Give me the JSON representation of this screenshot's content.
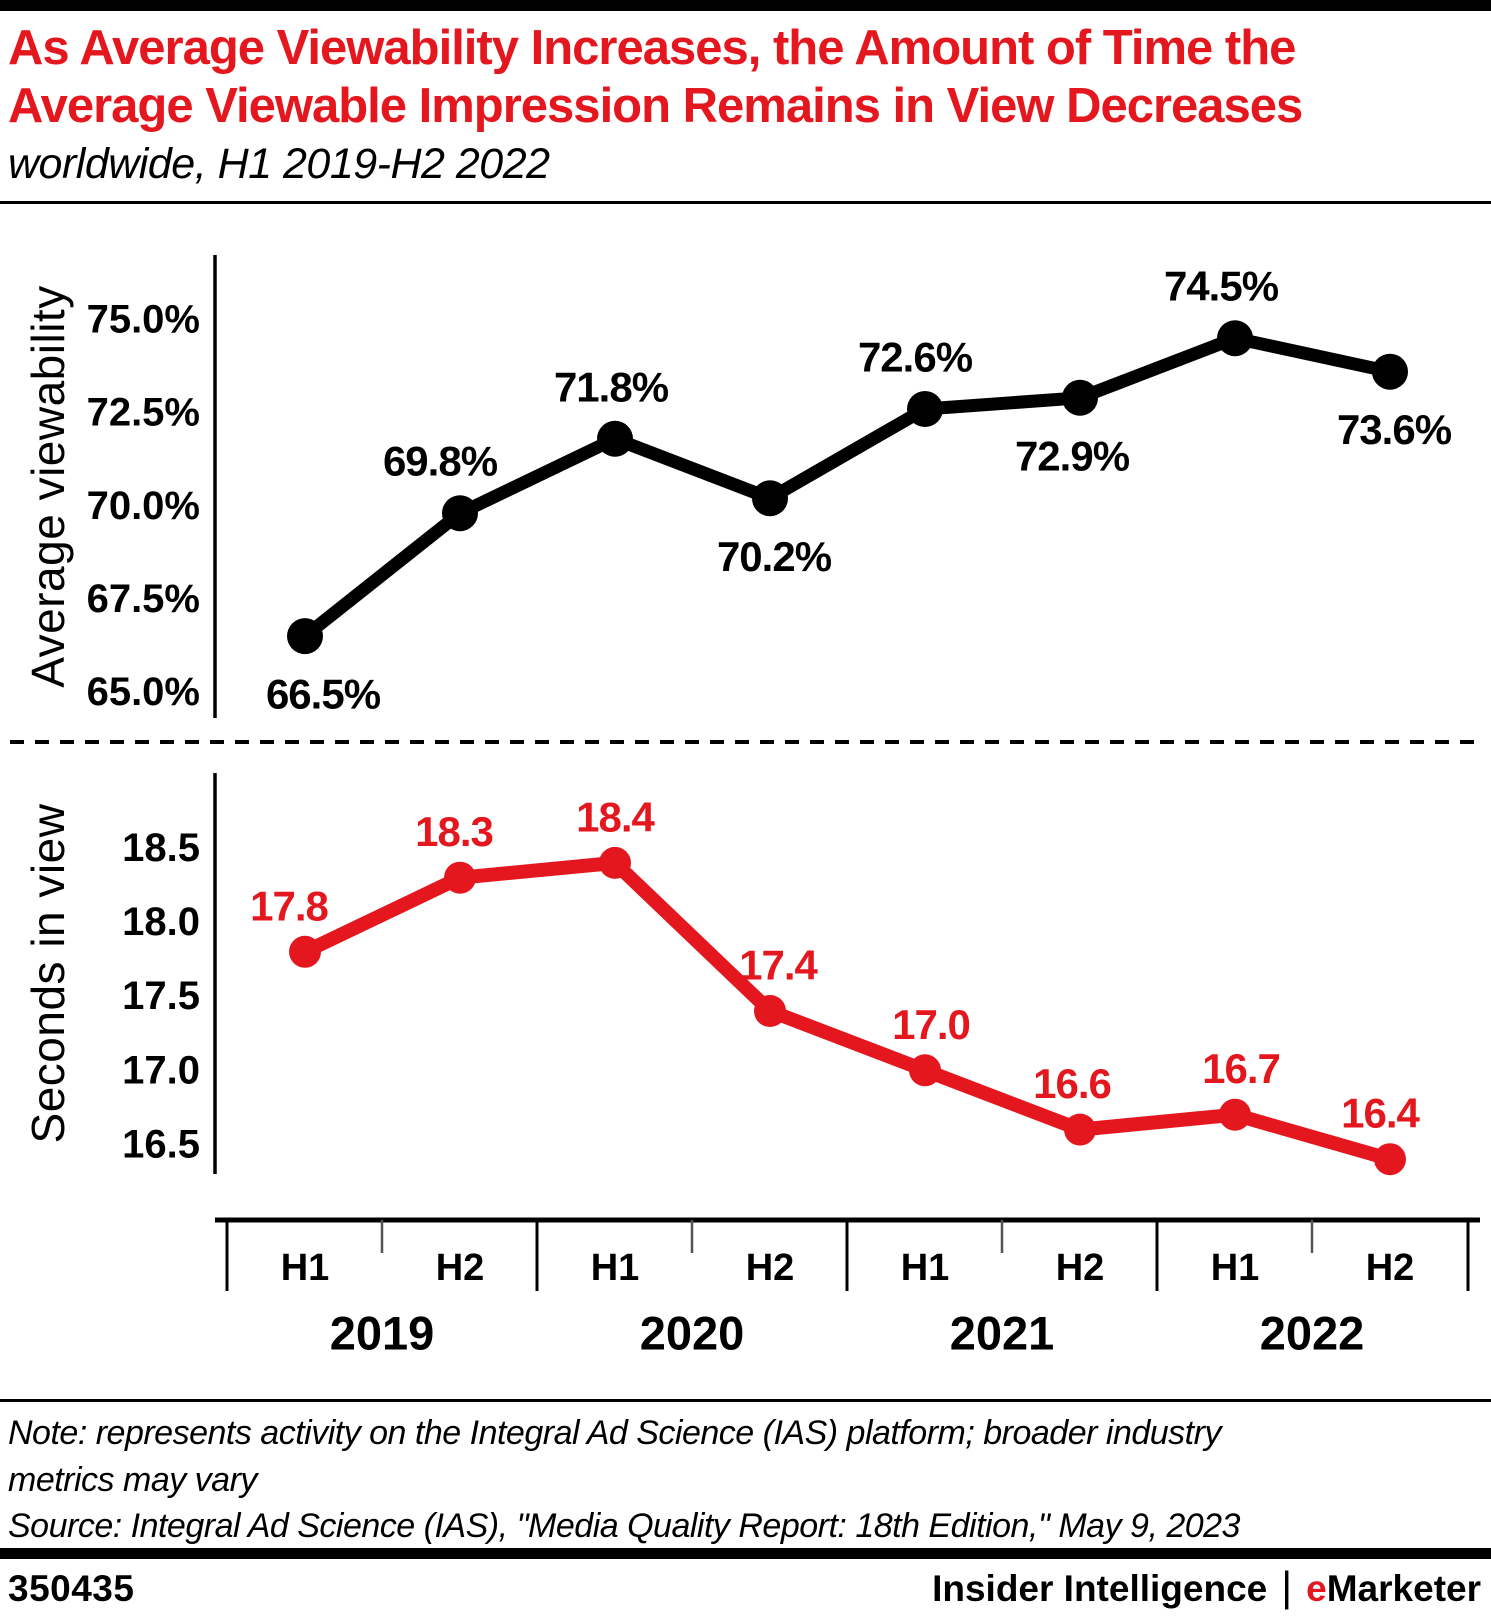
{
  "header": {
    "title_line1": "As Average Viewability Increases, the Amount of Time the",
    "title_line2": "Average Viewable Impression Remains in View Decreases",
    "subtitle": "worldwide, H1 2019-H2 2022"
  },
  "colors": {
    "accent_red": "#e4171f",
    "black": "#000000"
  },
  "chart_data": [
    {
      "type": "line",
      "name": "average-viewability",
      "ylabel": "Average viewability",
      "color": "#000000",
      "categories": [
        "H1 2019",
        "H2 2019",
        "H1 2020",
        "H2 2020",
        "H1 2021",
        "H2 2021",
        "H1 2022",
        "H2 2022"
      ],
      "values": [
        66.5,
        69.8,
        71.8,
        70.2,
        72.6,
        72.9,
        74.5,
        73.6
      ],
      "point_labels": [
        "66.5%",
        "69.8%",
        "71.8%",
        "70.2%",
        "72.6%",
        "72.9%",
        "74.5%",
        "73.6%"
      ],
      "label_side": [
        "below",
        "above",
        "above",
        "below",
        "above",
        "below",
        "above",
        "below"
      ],
      "yticks": [
        65.0,
        67.5,
        70.0,
        72.5,
        75.0
      ],
      "ytick_labels": [
        "65.0%",
        "67.5%",
        "70.0%",
        "72.5%",
        "75.0%"
      ],
      "ylim": [
        64.3,
        75.5
      ],
      "grid": false,
      "legend": "none"
    },
    {
      "type": "line",
      "name": "seconds-in-view",
      "ylabel": "Seconds in view",
      "color": "#e4171f",
      "categories": [
        "H1 2019",
        "H2 2019",
        "H1 2020",
        "H2 2020",
        "H1 2021",
        "H2 2021",
        "H1 2022",
        "H2 2022"
      ],
      "values": [
        17.8,
        18.3,
        18.4,
        17.4,
        17.0,
        16.6,
        16.7,
        16.4
      ],
      "point_labels": [
        "17.8",
        "18.3",
        "18.4",
        "17.4",
        "17.0",
        "16.6",
        "16.7",
        "16.4"
      ],
      "label_side": [
        "above",
        "above",
        "above",
        "above",
        "above",
        "above",
        "above",
        "above"
      ],
      "yticks": [
        16.5,
        17.0,
        17.5,
        18.0,
        18.5
      ],
      "ytick_labels": [
        "16.5",
        "17.0",
        "17.5",
        "18.0",
        "18.5"
      ],
      "ylim": [
        16.3,
        19.0
      ],
      "grid": false,
      "legend": "none"
    }
  ],
  "xaxis": {
    "half_labels": [
      "H1",
      "H2",
      "H1",
      "H2",
      "H1",
      "H2",
      "H1",
      "H2"
    ],
    "years": [
      "2019",
      "2020",
      "2021",
      "2022"
    ]
  },
  "notes": {
    "note_line1": "Note: represents activity on the Integral Ad Science (IAS) platform; broader industry",
    "note_line2": "metrics may vary",
    "source": "Source: Integral Ad Science (IAS), \"Media Quality Report: 18th Edition,\" May 9, 2023"
  },
  "footer": {
    "chart_id": "350435",
    "brand_left": "Insider Intelligence",
    "separator": "|",
    "brand_e": "e",
    "brand_rest": "Marketer"
  }
}
